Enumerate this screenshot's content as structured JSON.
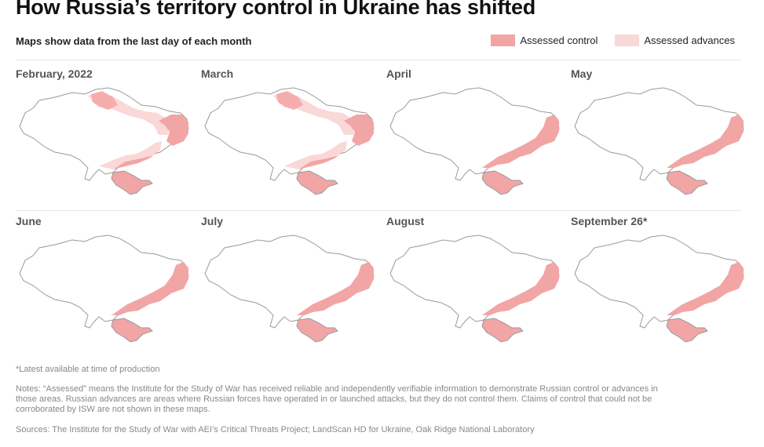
{
  "title": "How Russia’s territory control in Ukraine has shifted",
  "subtitle": "Maps show data from the last day of each month",
  "legend": {
    "items": [
      {
        "label": "Assessed control",
        "color": "#f2a5a5"
      },
      {
        "label": "Assessed advances",
        "color": "#fad8d8"
      }
    ]
  },
  "maps": [
    {
      "label": "February, 2022",
      "advances": true
    },
    {
      "label": "March",
      "advances": true
    },
    {
      "label": "April",
      "advances": false
    },
    {
      "label": "May",
      "advances": false
    },
    {
      "label": "June",
      "advances": false
    },
    {
      "label": "July",
      "advances": false
    },
    {
      "label": "August",
      "advances": false
    },
    {
      "label": "September 26*",
      "advances": false
    }
  ],
  "footnotes": {
    "asterisk": "*Latest available at time of production",
    "notes": "Notes: “Assessed” means the Institute for the Study of War has received reliable and independently verifiable information to demonstrate Russian control or advances in those areas. Russian advances are areas where Russian forces have operated in or launched attacks, but they do not control them. Claims of control that could not be corroborated by ISW are not shown in these maps.",
    "sources": "Sources: The Institute for the Study of War with AEI’s Critical Threats Project; LandScan HD for Ukraine, Oak Ridge National Laboratory"
  }
}
